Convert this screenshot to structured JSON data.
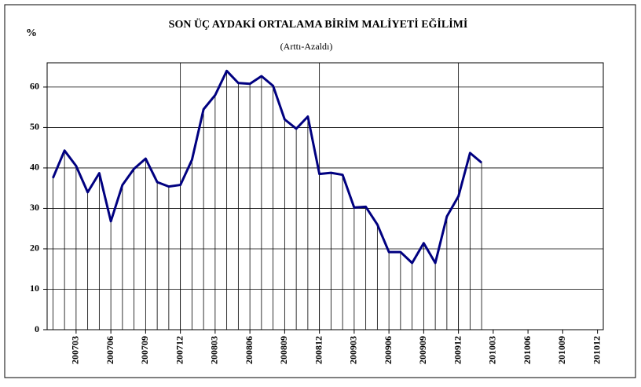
{
  "chart_data": {
    "type": "line",
    "title": "SON ÜÇ AYDAKİ ORTALAMA BİRİM MALİYETİ EĞİLİMİ",
    "subtitle": "(Arttı-Azaldı)",
    "y_label": "%",
    "categories": [
      null,
      null,
      "200703",
      null,
      null,
      "200706",
      null,
      null,
      "200709",
      null,
      null,
      "200712",
      null,
      null,
      "200803",
      null,
      null,
      "200806",
      null,
      null,
      "200809",
      null,
      null,
      "200812",
      null,
      null,
      "200903",
      null,
      null,
      "200906",
      null,
      null,
      "200909",
      null,
      null,
      "200912",
      null,
      null,
      "201003",
      null,
      null,
      "201006",
      null,
      null,
      "201009",
      null,
      null,
      "201012"
    ],
    "series": [
      {
        "name": null,
        "color": "#000080",
        "values": [
          37.5,
          44.3,
          40.5,
          34,
          38.7,
          26.8,
          35.8,
          39.8,
          42.3,
          36.5,
          35.4,
          35.8,
          42,
          54.5,
          58,
          64,
          61,
          60.8,
          62.7,
          60.3,
          52,
          49.7,
          52.7,
          38.5,
          38.8,
          38.3,
          30.2,
          30.4,
          26,
          19.2,
          19.2,
          16.5,
          21.4,
          16.5,
          28,
          33,
          43.7,
          41.3,
          null,
          null,
          null,
          null,
          null,
          null,
          null,
          null,
          null,
          null
        ]
      }
    ],
    "ylim": [
      0,
      66
    ],
    "yticks": [
      0,
      10,
      20,
      30,
      40,
      50,
      60
    ],
    "grid": true,
    "drop_lines": true
  }
}
